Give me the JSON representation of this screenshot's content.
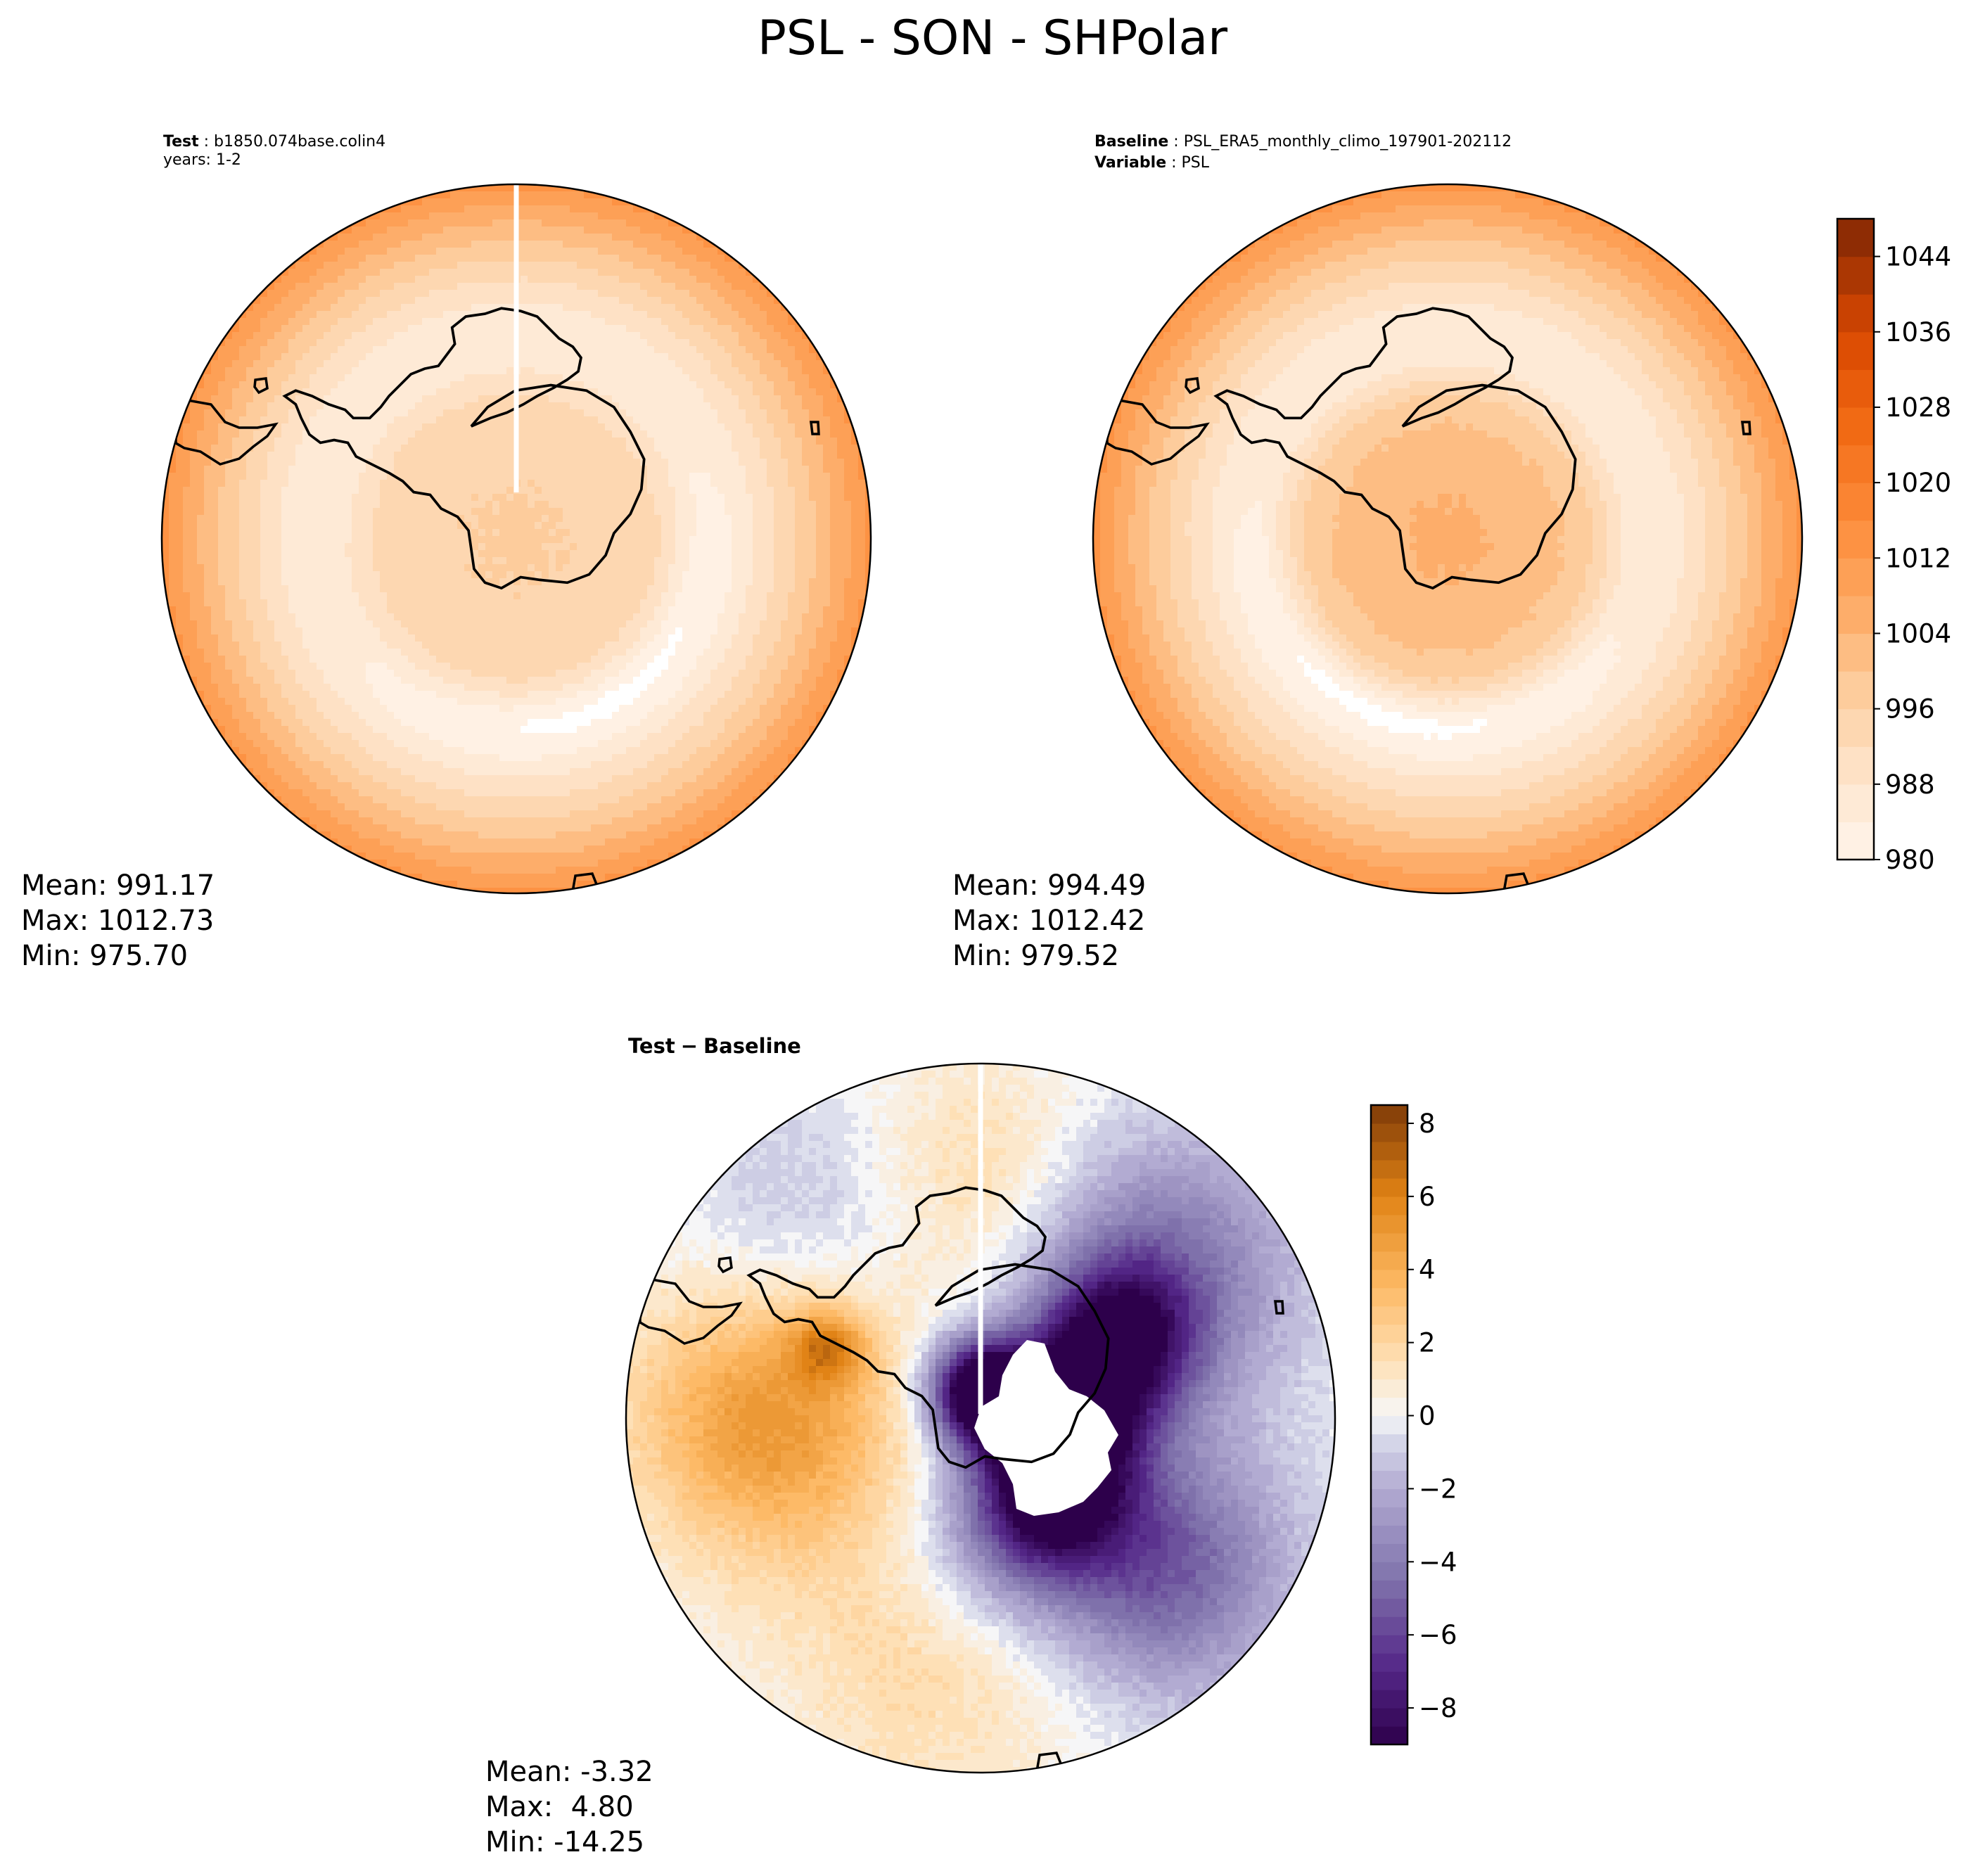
{
  "figure": {
    "title": "PSL - SON - SHPolar"
  },
  "chart_data": [
    {
      "type": "heatmap",
      "panel": "test",
      "projection": "south-polar-stereographic",
      "label_key": "Test",
      "label_value": "b1850.074base.colin4",
      "label_line2": "years: 1-2",
      "stats": {
        "mean": "Mean: 991.17",
        "max": "Max: 1012.73",
        "min": "Min: 975.70"
      },
      "field": {
        "pole": 997,
        "coast": 994,
        "ocean_min": 985,
        "rim": 1013,
        "low_zone_offset_deg": 150,
        "low_zone_depth": 6
      }
    },
    {
      "type": "heatmap",
      "panel": "baseline",
      "projection": "south-polar-stereographic",
      "label_key": "Baseline",
      "label_value": "PSL_ERA5_monthly_climo_197901-202112",
      "label_key2": "Variable",
      "label_value2": "PSL",
      "stats": {
        "mean": "Mean: 994.49",
        "max": "Max: 1012.42",
        "min": "Min: 979.52"
      },
      "field": {
        "pole": 1006,
        "coast": 999,
        "ocean_min": 985,
        "rim": 1013,
        "low_zone_offset_deg": 200,
        "low_zone_depth": 6
      },
      "colorbar": {
        "colormap": "Oranges",
        "range": [
          980,
          1048
        ],
        "step": 4,
        "ticks": [
          980,
          988,
          996,
          1004,
          1012,
          1020,
          1028,
          1036,
          1044
        ],
        "tick_labels": [
          "980",
          "988",
          "996",
          "1004",
          "1012",
          "1020",
          "1028",
          "1036",
          "1044"
        ]
      }
    },
    {
      "type": "heatmap",
      "panel": "difference",
      "projection": "south-polar-stereographic",
      "label_key": "Test",
      "label_minus": "−",
      "label_value": "Baseline",
      "stats": {
        "mean": "Mean: -3.32",
        "max": "Max:  4.80",
        "min": "Min: -14.25"
      },
      "anomalies": [
        {
          "lon": 130,
          "colat": 26,
          "amp": -5.5,
          "width": 10
        },
        {
          "lon": -90,
          "colat": 24,
          "amp": 5.0,
          "width": 11
        },
        {
          "lon": 50,
          "colat": 26,
          "amp": -4.5,
          "width": 11
        },
        {
          "lon": -170,
          "colat": 26,
          "amp": 2.0,
          "width": 13
        },
        {
          "lon": 0,
          "colat": 27,
          "amp": 2.0,
          "width": 10
        },
        {
          "lon": -40,
          "colat": 30,
          "amp": -1.5,
          "width": 10
        },
        {
          "lon": 175,
          "colat": 14,
          "amp": -2.5,
          "width": 8
        },
        {
          "lon": 90,
          "colat": 9,
          "amp": -9.0,
          "width": 6
        },
        {
          "lon": 60,
          "colat": 18,
          "amp": -7.0,
          "width": 6
        },
        {
          "lon": 140,
          "colat": 12,
          "amp": -7.0,
          "width": 6
        },
        {
          "lon": -65,
          "colat": 19,
          "amp": 4.0,
          "width": 3
        },
        {
          "lon": 0,
          "colat": 3,
          "amp": -11.0,
          "width": 4
        }
      ],
      "colorbar": {
        "colormap": "PuOr_r",
        "range": [
          -9,
          8.5
        ],
        "ticks": [
          -8,
          -6,
          -4,
          -2,
          0,
          2,
          4,
          6,
          8
        ],
        "tick_labels": [
          "−8",
          "−6",
          "−4",
          "−2",
          "0",
          "2",
          "4",
          "6",
          "8"
        ]
      }
    }
  ]
}
